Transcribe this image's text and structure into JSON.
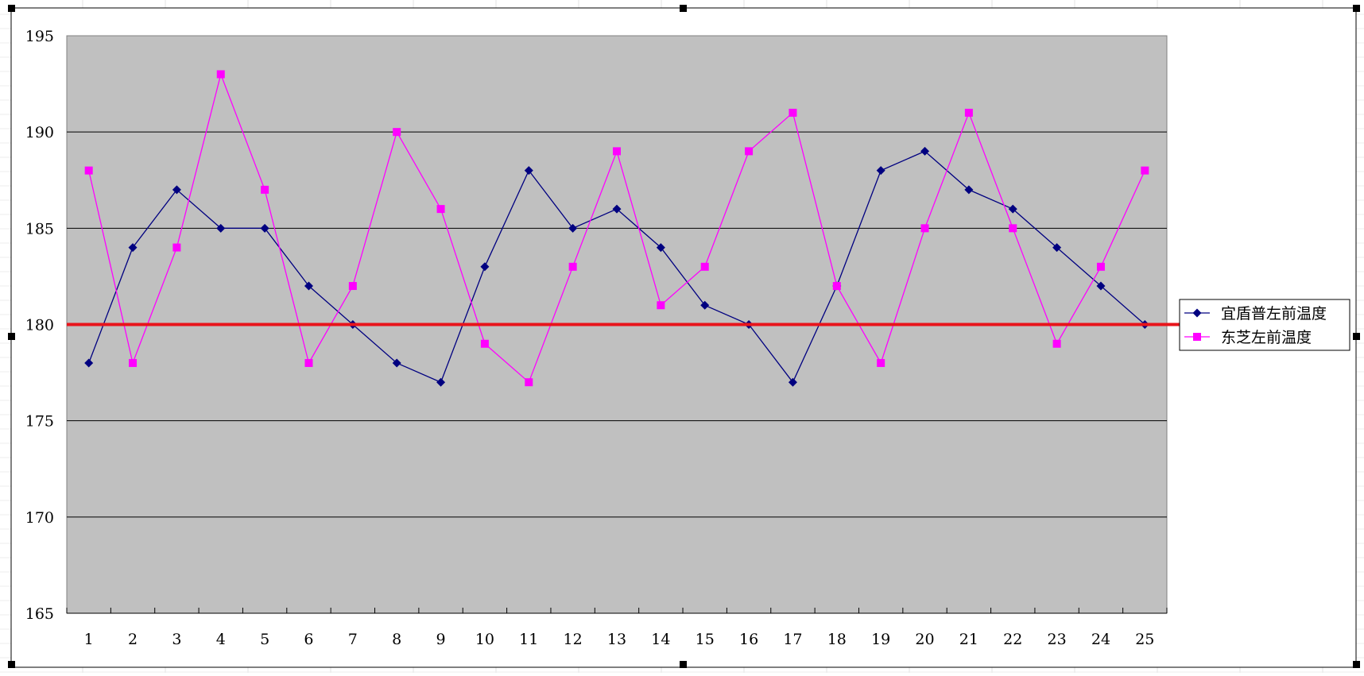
{
  "chart_data": {
    "type": "line",
    "categories": [
      "1",
      "2",
      "3",
      "4",
      "5",
      "6",
      "7",
      "8",
      "9",
      "10",
      "11",
      "12",
      "13",
      "14",
      "15",
      "16",
      "17",
      "18",
      "19",
      "20",
      "21",
      "22",
      "23",
      "24",
      "25"
    ],
    "ylim": [
      165,
      195
    ],
    "yticks": [
      165,
      170,
      175,
      180,
      185,
      190,
      195
    ],
    "grid": true,
    "plot_background": "#C0C0C0",
    "legend_position": "right",
    "reference_line": {
      "value": 180,
      "color": "#E8141B"
    },
    "series": [
      {
        "name": "宜盾普左前温度",
        "color": "#000080",
        "marker": "diamond",
        "values": [
          178,
          184,
          187,
          185,
          185,
          182,
          180,
          178,
          177,
          183,
          188,
          185,
          186,
          184,
          181,
          180,
          177,
          182,
          188,
          189,
          187,
          186,
          184,
          182,
          180
        ]
      },
      {
        "name": "东芝左前温度",
        "color": "#FF00FF",
        "marker": "square",
        "values": [
          188,
          178,
          184,
          193,
          187,
          178,
          182,
          190,
          186,
          179,
          177,
          183,
          189,
          181,
          183,
          189,
          191,
          182,
          178,
          185,
          191,
          185,
          179,
          183,
          188
        ]
      }
    ]
  }
}
